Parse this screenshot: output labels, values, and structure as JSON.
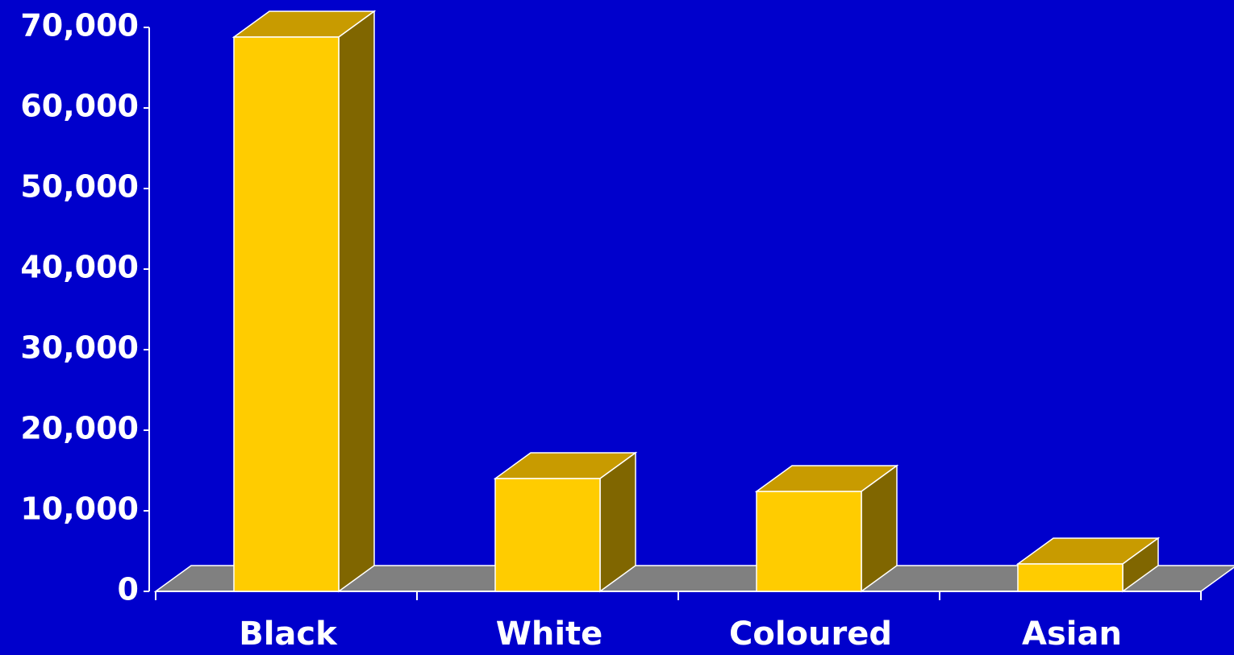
{
  "chart_data": {
    "type": "bar3d",
    "categories": [
      "Black",
      "White",
      "Coloured",
      "Asian"
    ],
    "values": [
      68800,
      14000,
      12400,
      3400
    ],
    "color": "#ffcc00",
    "ylim": [
      0,
      70000
    ],
    "yticks": [
      0,
      {
        "value": 10000,
        "label": "10,000"
      },
      {
        "value": 20000,
        "label": "20,000"
      },
      {
        "value": 30000,
        "label": "30,000"
      },
      {
        "value": 40000,
        "label": "40,000"
      },
      {
        "value": 50000,
        "label": "50,000"
      },
      {
        "value": 60000,
        "label": "60,000"
      },
      {
        "value": 70000,
        "label": "70,000"
      }
    ]
  }
}
